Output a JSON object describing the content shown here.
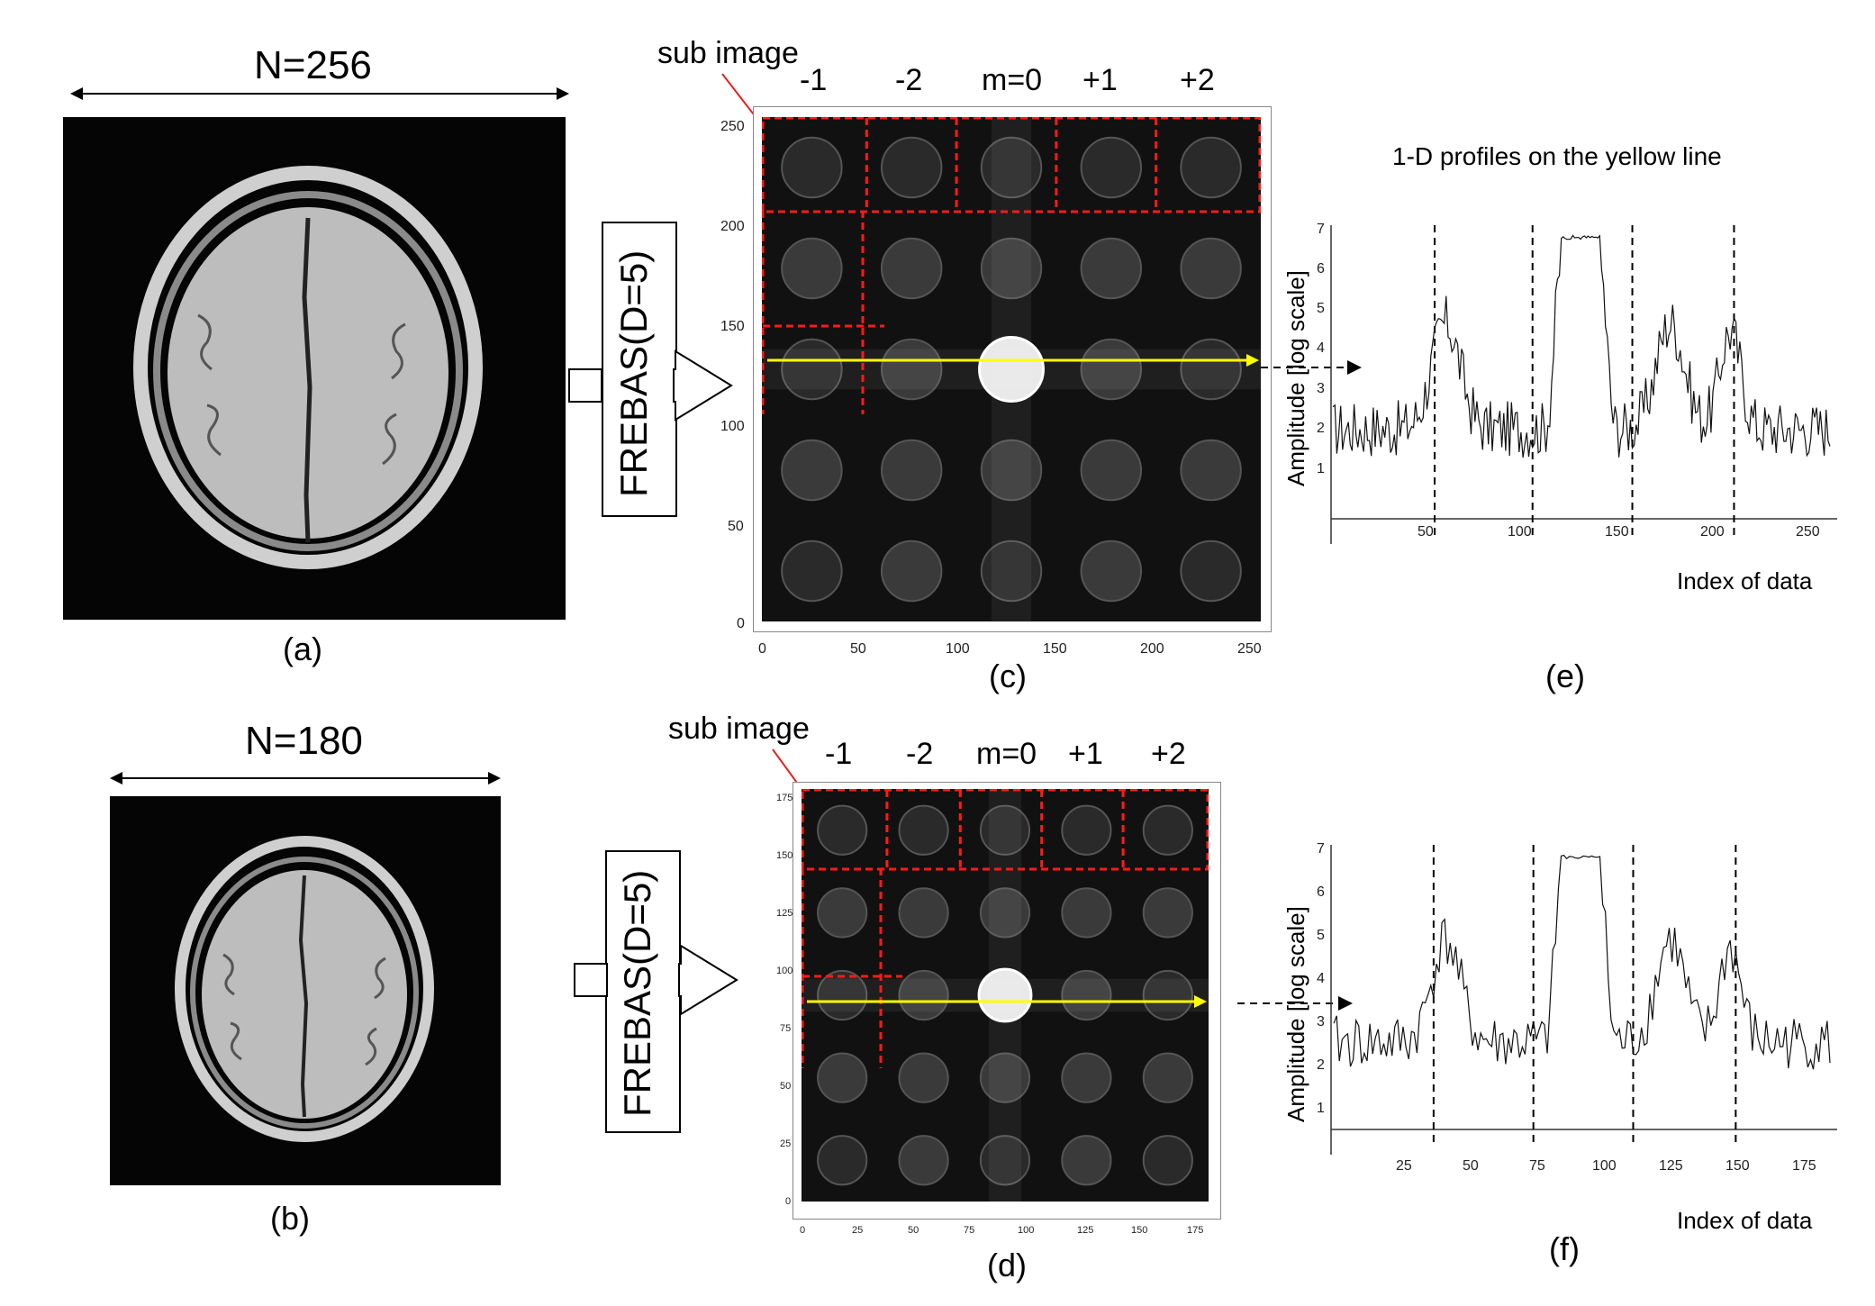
{
  "panel_a": {
    "size_label": "N=256",
    "caption": "(a)"
  },
  "panel_b": {
    "size_label": "N=180",
    "caption": "(b)"
  },
  "panel_c": {
    "caption": "(c)",
    "sub_image_label": "sub image",
    "column_labels": [
      "-1",
      "-2",
      "m=0",
      "+1",
      "+2"
    ],
    "process_label": "FREBAS(D=5)",
    "x_ticks": [
      "0",
      "50",
      "100",
      "150",
      "200",
      "250"
    ],
    "y_ticks": [
      "250",
      "200",
      "150",
      "100",
      "50",
      "0"
    ]
  },
  "panel_d": {
    "caption": "(d)",
    "sub_image_label": "sub image",
    "column_labels": [
      "-1",
      "-2",
      "m=0",
      "+1",
      "+2"
    ],
    "process_label": "FREBAS(D=5)",
    "x_ticks": [
      "0",
      "25",
      "50",
      "75",
      "100",
      "125",
      "150",
      "175"
    ],
    "y_ticks": [
      "175",
      "150",
      "125",
      "100",
      "75",
      "50",
      "25",
      "0"
    ]
  },
  "panel_e": {
    "caption": "(e)",
    "title": "1-D profiles on the yellow line",
    "ylabel": "Amplitude  [log scale]",
    "xlabel": "Index of data",
    "x_ticks": [
      "50",
      "100",
      "150",
      "200",
      "250"
    ],
    "y_ticks": [
      "7",
      "6",
      "5",
      "4",
      "3",
      "2",
      "1"
    ]
  },
  "panel_f": {
    "caption": "(f)",
    "ylabel": "Amplitude  [log scale]",
    "xlabel": "Index of data",
    "x_ticks": [
      "25",
      "50",
      "75",
      "100",
      "125",
      "150",
      "175"
    ],
    "y_ticks": [
      "7",
      "6",
      "5",
      "4",
      "3",
      "2",
      "1"
    ]
  },
  "colors": {
    "yellow_line": "#ffff00",
    "red_dashed": "#ff1a1a",
    "profile": "#111111"
  }
}
